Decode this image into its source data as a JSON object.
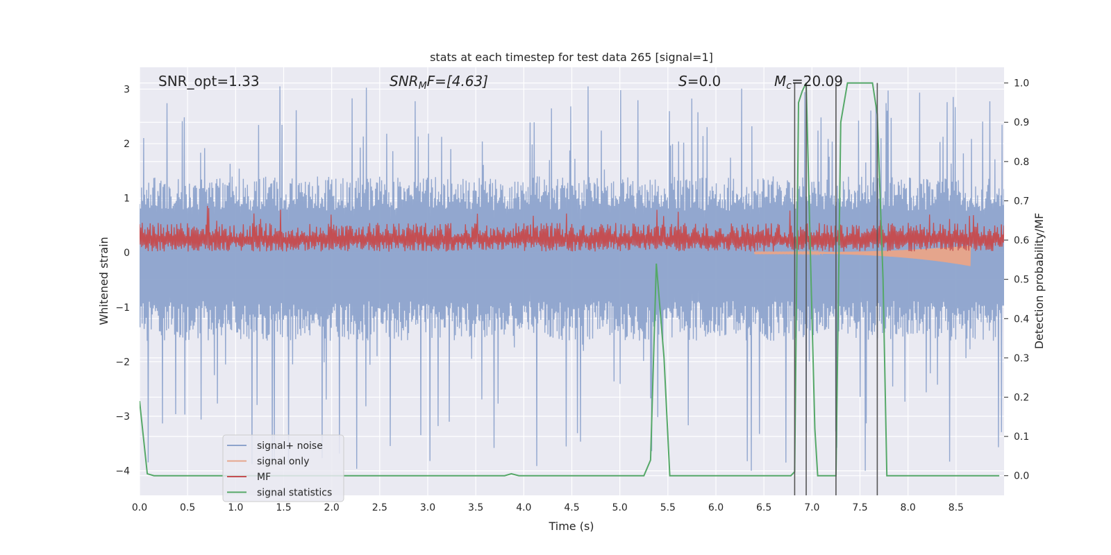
{
  "chart_data": {
    "type": "line",
    "title": "stats at each timestep for test data 265 [signal=1]",
    "xlabel": "Time (s)",
    "ylabel": "Whitened strain",
    "ylabel_right": "Detection probability/MF",
    "xlim": [
      0.0,
      9.0
    ],
    "ylim": [
      -4.45,
      3.4
    ],
    "ylim_right": [
      -0.05,
      1.04
    ],
    "x_ticks": [
      0.0,
      0.5,
      1.0,
      1.5,
      2.0,
      2.5,
      3.0,
      3.5,
      4.0,
      4.5,
      5.0,
      5.5,
      6.0,
      6.5,
      7.0,
      7.5,
      8.0,
      8.5
    ],
    "x_tick_labels": [
      "0.0",
      "0.5",
      "1.0",
      "1.5",
      "2.0",
      "2.5",
      "3.0",
      "3.5",
      "4.0",
      "4.5",
      "5.0",
      "5.5",
      "6.0",
      "6.5",
      "7.0",
      "7.5",
      "8.0",
      "8.5"
    ],
    "y_ticks": [
      3,
      2,
      1,
      0,
      -1,
      -2,
      -3,
      -4
    ],
    "y_tick_labels": [
      "3",
      "2",
      "1",
      "0",
      "−1",
      "−2",
      "−3",
      "−4"
    ],
    "y_ticks_right": [
      1.0,
      0.9,
      0.8,
      0.7,
      0.6,
      0.5,
      0.4,
      0.3,
      0.2,
      0.1,
      0.0
    ],
    "y_tick_labels_right": [
      "1.0",
      "0.9",
      "0.8",
      "0.7",
      "0.6",
      "0.5",
      "0.4",
      "0.3",
      "0.2",
      "0.1",
      "0.0"
    ],
    "grid": true,
    "legend_position": "lower-left",
    "annotations": [
      {
        "text": "SNR_opt=1.33",
        "x": 0.2
      },
      {
        "text": "SNR_MF=[4.63]",
        "x": 2.6
      },
      {
        "text": "S=0.0",
        "x": 5.6
      },
      {
        "text": "M_c=20.09",
        "x": 6.6
      }
    ],
    "annotation_parts": {
      "snr_opt": "SNR_opt=1.33",
      "snr_mf_base": "SNR",
      "snr_mf_sub": "M",
      "snr_mf_rest": "F=[4.63]",
      "s_var": "S",
      "s_rest": "=0.0",
      "mc_base": "M",
      "mc_sub": "c",
      "mc_rest": "=20.09"
    },
    "vlines": [
      6.82,
      6.94,
      7.25,
      7.68
    ],
    "series": [
      {
        "name": "signal+ noise",
        "color": "#8da3cc",
        "kind": "noise",
        "envelope": {
          "upper_typical": 1.4,
          "lower_typical": -1.6,
          "peak_max": 3.05,
          "peak_min": -4.0
        }
      },
      {
        "name": "signal only",
        "color": "#e5a58c",
        "kind": "chirp",
        "x_range": [
          6.4,
          8.65
        ],
        "amplitude_end": 0.18
      },
      {
        "name": "MF",
        "color": "#c44e52",
        "kind": "band",
        "band": [
          0.0,
          0.55
        ],
        "peak": 0.87
      },
      {
        "name": "signal statistics",
        "color": "#55a868",
        "kind": "line",
        "x": [
          0.0,
          0.08,
          0.15,
          0.5,
          1.0,
          2.0,
          3.0,
          3.8,
          3.87,
          3.95,
          4.5,
          5.0,
          5.25,
          5.32,
          5.38,
          5.46,
          5.52,
          5.6,
          6.0,
          6.7,
          6.78,
          6.82,
          6.86,
          6.9,
          6.94,
          6.99,
          7.03,
          7.06,
          7.12,
          7.18,
          7.25,
          7.3,
          7.37,
          7.45,
          7.55,
          7.63,
          7.68,
          7.74,
          7.78,
          8.0,
          8.5,
          8.95
        ],
        "y": [
          0.19,
          0.005,
          0.0,
          0.0,
          0.0,
          0.0,
          0.0,
          0.0,
          0.005,
          0.0,
          0.0,
          0.0,
          0.0,
          0.04,
          0.54,
          0.3,
          0.0,
          0.0,
          0.0,
          0.0,
          0.0,
          0.01,
          0.95,
          0.98,
          1.0,
          0.5,
          0.12,
          0.0,
          0.0,
          0.0,
          0.0,
          0.9,
          1.0,
          1.0,
          1.0,
          1.0,
          0.92,
          0.5,
          0.0,
          0.0,
          0.0,
          0.0
        ]
      }
    ]
  }
}
